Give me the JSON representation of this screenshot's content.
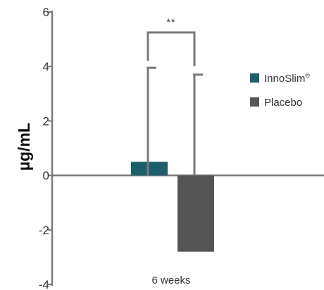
{
  "chart_data": {
    "type": "bar",
    "ylabel": "µg/mL",
    "ylim": [
      -4,
      6
    ],
    "yticks": [
      6,
      4,
      2,
      0,
      -2,
      -4
    ],
    "categories": [
      "6 weeks"
    ],
    "series": [
      {
        "name": "InnoSlim",
        "name_suffix": "®",
        "values": [
          0.5
        ],
        "error_upper": [
          3.95
        ],
        "color": "#1b5f6d"
      },
      {
        "name": "Placebo",
        "values": [
          -2.8
        ],
        "error_upper": [
          3.7
        ],
        "color": "#555555"
      }
    ],
    "significance": {
      "label": "**",
      "between": [
        "InnoSlim",
        "Placebo"
      ]
    },
    "legend_position": "right",
    "grid": false
  },
  "colors": {
    "axis": "#7a7a7a",
    "error_bar": "#7a7a7a"
  }
}
